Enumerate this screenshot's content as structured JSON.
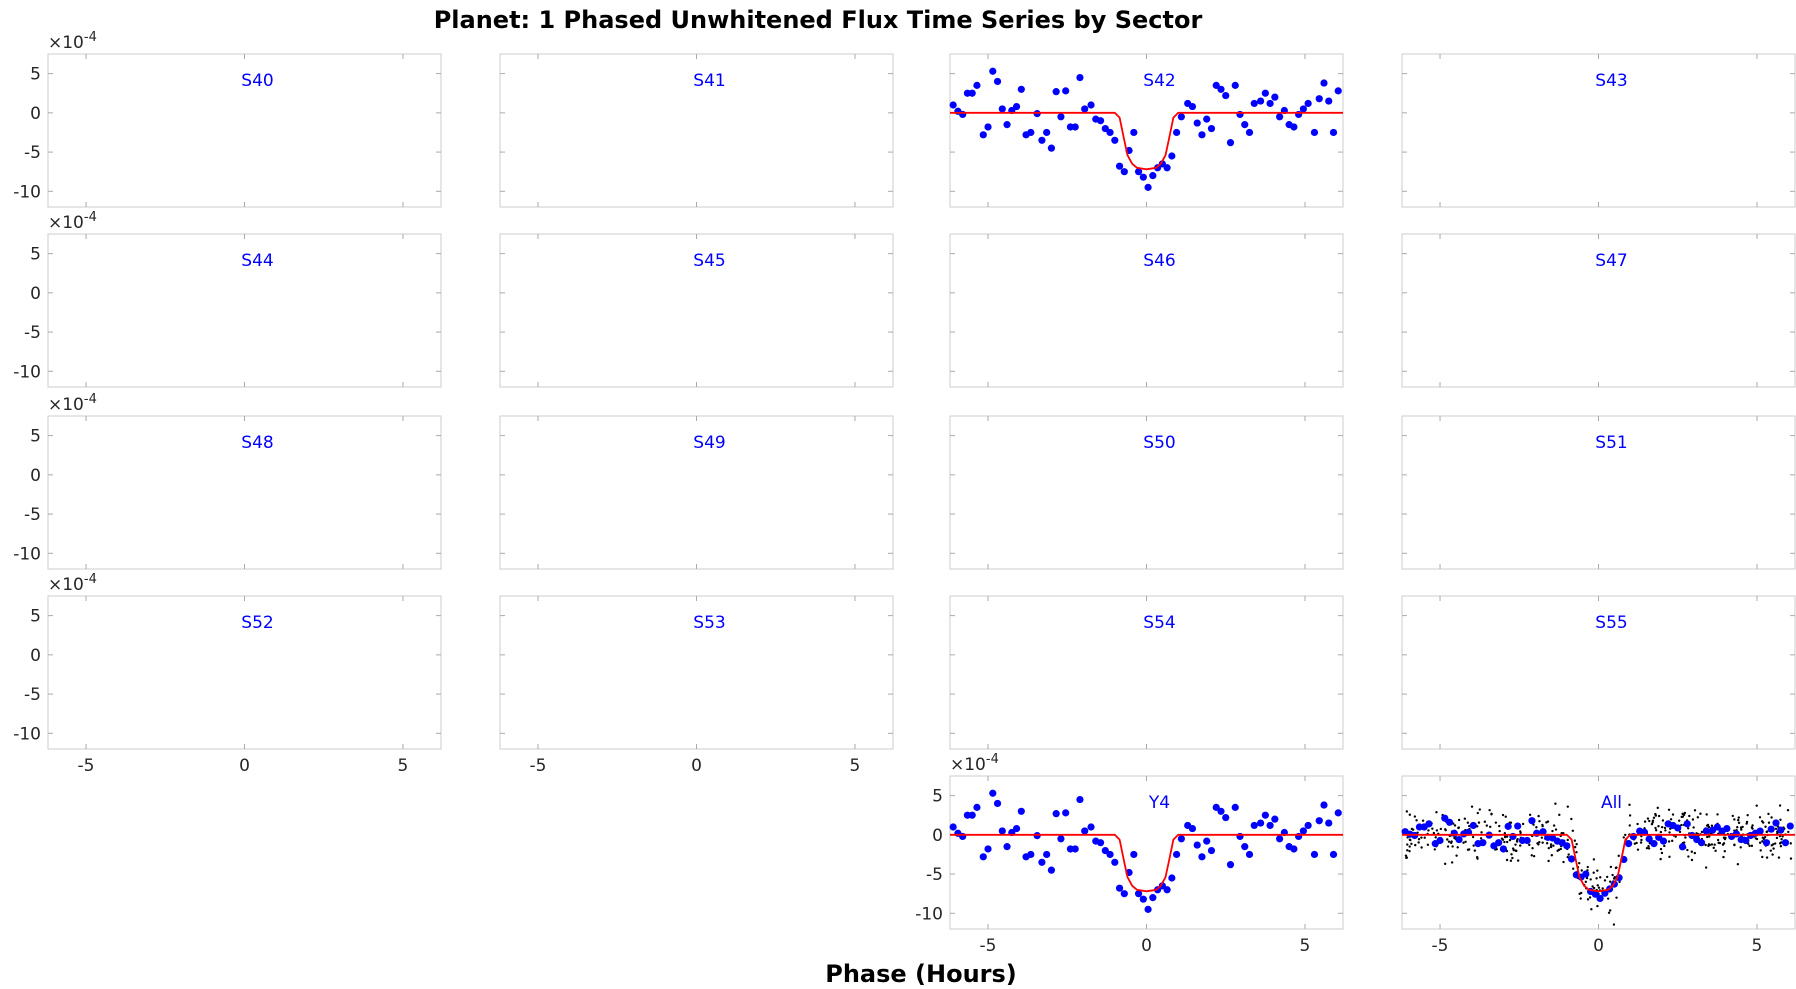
{
  "figure": {
    "title": "Planet: 1   Phased Unwhitened Flux Time Series by Sector",
    "xlabel": "Phase (Hours)"
  },
  "colors": {
    "points": "#0000ff",
    "raw_points": "#000000",
    "model": "#ff0000",
    "panel_label": "#0000ff",
    "axis": "#cccccc",
    "tick_text": "#262626"
  },
  "chart_data": {
    "type": "scatter",
    "xlim": [
      -6.2,
      6.2
    ],
    "ylim": [
      -12,
      7.5
    ],
    "xticks": [
      -5,
      0,
      5
    ],
    "yticks": [
      5,
      0,
      -5,
      -10
    ],
    "y_exponent_label": "×10",
    "y_exponent_power": "-4",
    "panels": [
      {
        "label": "S40"
      },
      {
        "label": "S41"
      },
      {
        "label": "S42"
      },
      {
        "label": "S43"
      },
      {
        "label": "S44"
      },
      {
        "label": "S45"
      },
      {
        "label": "S46"
      },
      {
        "label": "S47"
      },
      {
        "label": "S48"
      },
      {
        "label": "S49"
      },
      {
        "label": "S50"
      },
      {
        "label": "S51"
      },
      {
        "label": "S52"
      },
      {
        "label": "S53"
      },
      {
        "label": "S54"
      },
      {
        "label": "S55"
      },
      {
        "label": "Y4"
      },
      {
        "label": "All"
      }
    ],
    "binned_points": {
      "x": [
        -6.1,
        -5.95,
        -5.8,
        -5.65,
        -5.5,
        -5.35,
        -5.15,
        -5.0,
        -4.85,
        -4.7,
        -4.55,
        -4.4,
        -4.25,
        -4.1,
        -3.95,
        -3.8,
        -3.65,
        -3.45,
        -3.3,
        -3.15,
        -3.0,
        -2.85,
        -2.7,
        -2.55,
        -2.4,
        -2.25,
        -2.1,
        -1.95,
        -1.75,
        -1.6,
        -1.45,
        -1.3,
        -1.15,
        -1.0,
        -0.85,
        -0.7,
        -0.55,
        -0.4,
        -0.25,
        -0.1,
        0.05,
        0.2,
        0.35,
        0.5,
        0.65,
        0.8,
        0.95,
        1.1,
        1.3,
        1.45,
        1.6,
        1.75,
        1.9,
        2.05,
        2.2,
        2.35,
        2.5,
        2.65,
        2.8,
        2.95,
        3.1,
        3.25,
        3.4,
        3.6,
        3.75,
        3.9,
        4.05,
        4.2,
        4.35,
        4.5,
        4.65,
        4.8,
        4.95,
        5.1,
        5.3,
        5.45,
        5.6,
        5.75,
        5.9,
        6.05
      ],
      "y": [
        1.0,
        0.2,
        -0.2,
        2.5,
        2.5,
        3.5,
        -2.8,
        -1.8,
        5.3,
        4.0,
        0.5,
        -1.5,
        0.3,
        0.8,
        3.0,
        -2.8,
        -2.5,
        -0.1,
        -3.5,
        -2.5,
        -4.5,
        2.7,
        -0.5,
        2.8,
        -1.8,
        -1.8,
        4.5,
        0.5,
        1.0,
        -0.8,
        -1.0,
        -2.0,
        -2.5,
        -3.5,
        -6.8,
        -7.5,
        -4.8,
        -2.5,
        -7.5,
        -8.2,
        -9.5,
        -8.0,
        -7.0,
        -6.5,
        -7.0,
        -5.5,
        -2.5,
        -0.5,
        1.2,
        0.8,
        -1.3,
        -2.8,
        -0.8,
        -2.0,
        3.5,
        3.0,
        2.2,
        -3.8,
        3.5,
        -0.2,
        -1.5,
        -2.5,
        1.2,
        1.5,
        2.5,
        1.2,
        2.0,
        -0.5,
        0.3,
        -1.5,
        -1.8,
        -0.2,
        0.5,
        1.2,
        -2.5,
        1.8,
        3.8,
        1.5,
        -2.5,
        2.8
      ]
    },
    "model": {
      "x": [
        -6.2,
        -1.0,
        -0.85,
        -0.7,
        -0.6,
        -0.45,
        -0.3,
        0.0,
        0.3,
        0.45,
        0.6,
        0.7,
        0.85,
        1.0,
        6.2
      ],
      "y": [
        0,
        0,
        -0.6,
        -3.5,
        -5.4,
        -6.5,
        -7.0,
        -7.2,
        -7.0,
        -6.5,
        -5.4,
        -3.5,
        -0.6,
        0,
        0
      ]
    }
  }
}
